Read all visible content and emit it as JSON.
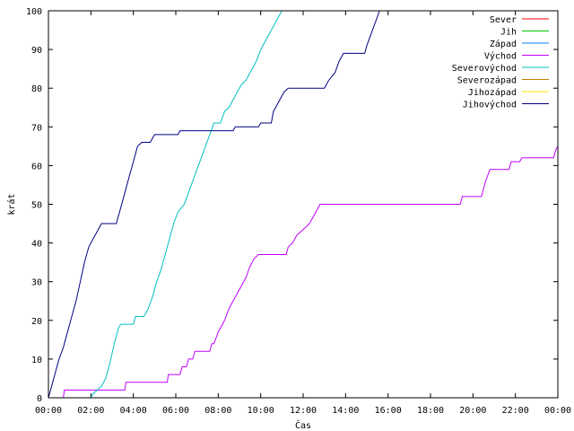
{
  "chart_data": {
    "type": "line",
    "xlabel": "Čas",
    "ylabel": "krát",
    "xlim": [
      0,
      24
    ],
    "ylim": [
      0,
      100
    ],
    "x_ticks": [
      {
        "value": 0,
        "label": "00:00"
      },
      {
        "value": 2,
        "label": "02:00"
      },
      {
        "value": 4,
        "label": "04:00"
      },
      {
        "value": 6,
        "label": "06:00"
      },
      {
        "value": 8,
        "label": "08:00"
      },
      {
        "value": 10,
        "label": "10:00"
      },
      {
        "value": 12,
        "label": "12:00"
      },
      {
        "value": 14,
        "label": "14:00"
      },
      {
        "value": 16,
        "label": "16:00"
      },
      {
        "value": 18,
        "label": "18:00"
      },
      {
        "value": 20,
        "label": "20:00"
      },
      {
        "value": 22,
        "label": "22:00"
      },
      {
        "value": 24,
        "label": "00:00"
      }
    ],
    "y_ticks": [
      0,
      10,
      20,
      30,
      40,
      50,
      60,
      70,
      80,
      90,
      100
    ],
    "legend_position": "top-right",
    "series": [
      {
        "name": "Sever",
        "color": "#ff0000",
        "points": []
      },
      {
        "name": "Jih",
        "color": "#00c000",
        "points": []
      },
      {
        "name": "Západ",
        "color": "#0080ff",
        "points": []
      },
      {
        "name": "Východ",
        "color": "#c000ff",
        "points": [
          [
            0.0,
            0
          ],
          [
            0.7,
            0
          ],
          [
            0.75,
            2
          ],
          [
            3.6,
            2
          ],
          [
            3.65,
            4
          ],
          [
            5.6,
            4
          ],
          [
            5.65,
            6
          ],
          [
            6.2,
            6
          ],
          [
            6.3,
            8
          ],
          [
            6.5,
            8
          ],
          [
            6.6,
            10
          ],
          [
            6.8,
            10
          ],
          [
            6.9,
            12
          ],
          [
            7.6,
            12
          ],
          [
            7.7,
            14
          ],
          [
            7.8,
            14
          ],
          [
            8.0,
            17
          ],
          [
            8.3,
            20
          ],
          [
            8.5,
            23
          ],
          [
            8.7,
            25
          ],
          [
            8.9,
            27
          ],
          [
            9.1,
            29
          ],
          [
            9.3,
            31
          ],
          [
            9.5,
            34
          ],
          [
            9.7,
            36
          ],
          [
            9.9,
            37
          ],
          [
            11.2,
            37
          ],
          [
            11.3,
            39
          ],
          [
            11.5,
            40
          ],
          [
            11.7,
            42
          ],
          [
            11.9,
            43
          ],
          [
            12.1,
            44
          ],
          [
            12.3,
            45
          ],
          [
            12.5,
            47
          ],
          [
            12.8,
            50
          ],
          [
            19.4,
            50
          ],
          [
            19.5,
            52
          ],
          [
            20.4,
            52
          ],
          [
            20.6,
            56
          ],
          [
            20.8,
            59
          ],
          [
            21.7,
            59
          ],
          [
            21.8,
            61
          ],
          [
            22.2,
            61
          ],
          [
            22.3,
            62
          ],
          [
            23.8,
            62
          ],
          [
            23.9,
            64
          ],
          [
            24.0,
            65
          ]
        ]
      },
      {
        "name": "Severovýchod",
        "color": "#00c0c0",
        "points": [
          [
            0.0,
            0
          ],
          [
            2.0,
            0
          ],
          [
            2.1,
            1
          ],
          [
            2.3,
            2
          ],
          [
            2.5,
            3
          ],
          [
            2.7,
            5
          ],
          [
            2.9,
            9
          ],
          [
            3.1,
            14
          ],
          [
            3.3,
            18
          ],
          [
            3.4,
            19
          ],
          [
            4.0,
            19
          ],
          [
            4.1,
            21
          ],
          [
            4.5,
            21
          ],
          [
            4.7,
            23
          ],
          [
            4.9,
            26
          ],
          [
            5.1,
            30
          ],
          [
            5.3,
            33
          ],
          [
            5.5,
            37
          ],
          [
            5.7,
            41
          ],
          [
            5.9,
            45
          ],
          [
            6.1,
            48
          ],
          [
            6.4,
            50
          ],
          [
            6.6,
            53
          ],
          [
            6.8,
            56
          ],
          [
            7.0,
            59
          ],
          [
            7.2,
            62
          ],
          [
            7.4,
            65
          ],
          [
            7.6,
            68
          ],
          [
            7.8,
            71
          ],
          [
            8.1,
            71
          ],
          [
            8.3,
            74
          ],
          [
            8.5,
            75
          ],
          [
            8.7,
            77
          ],
          [
            8.9,
            79
          ],
          [
            9.1,
            81
          ],
          [
            9.3,
            82
          ],
          [
            9.5,
            84
          ],
          [
            9.8,
            87
          ],
          [
            10.0,
            90
          ],
          [
            10.3,
            93
          ],
          [
            10.6,
            96
          ],
          [
            10.8,
            98
          ],
          [
            11.0,
            100
          ]
        ]
      },
      {
        "name": "Severozápad",
        "color": "#c08000",
        "points": []
      },
      {
        "name": "Jihozápad",
        "color": "#ffe000",
        "points": []
      },
      {
        "name": "Jihovýchod",
        "color": "#000080",
        "points": [
          [
            0.0,
            0
          ],
          [
            0.1,
            2
          ],
          [
            0.3,
            6
          ],
          [
            0.5,
            10
          ],
          [
            0.7,
            13
          ],
          [
            0.9,
            17
          ],
          [
            1.1,
            21
          ],
          [
            1.3,
            25
          ],
          [
            1.5,
            30
          ],
          [
            1.7,
            35
          ],
          [
            1.9,
            39
          ],
          [
            2.1,
            41
          ],
          [
            2.3,
            43
          ],
          [
            2.5,
            45
          ],
          [
            3.2,
            45
          ],
          [
            3.4,
            49
          ],
          [
            3.6,
            53
          ],
          [
            3.8,
            57
          ],
          [
            4.0,
            61
          ],
          [
            4.2,
            65
          ],
          [
            4.4,
            66
          ],
          [
            4.8,
            66
          ],
          [
            5.0,
            68
          ],
          [
            6.1,
            68
          ],
          [
            6.2,
            69
          ],
          [
            8.7,
            69
          ],
          [
            8.8,
            70
          ],
          [
            9.9,
            70
          ],
          [
            10.0,
            71
          ],
          [
            10.5,
            71
          ],
          [
            10.6,
            74
          ],
          [
            10.9,
            77
          ],
          [
            11.1,
            79
          ],
          [
            11.3,
            80
          ],
          [
            13.0,
            80
          ],
          [
            13.2,
            82
          ],
          [
            13.5,
            84
          ],
          [
            13.7,
            87
          ],
          [
            13.9,
            89
          ],
          [
            14.9,
            89
          ],
          [
            15.0,
            91
          ],
          [
            15.2,
            94
          ],
          [
            15.4,
            97
          ],
          [
            15.6,
            100
          ]
        ]
      }
    ]
  }
}
